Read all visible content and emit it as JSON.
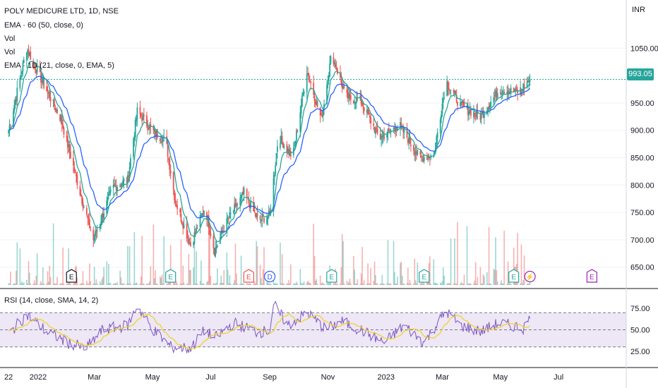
{
  "legend": {
    "title": "POLY MEDICURE LTD, 1D, NSE",
    "ema60": "EMA · 60 (50, close, 0)",
    "vol1": "Vol",
    "vol2": "Vol",
    "ema1d": "EMA · 1D (21, close, 0, EMA, 5)",
    "rsi": "RSI (14, close, SMA, 14, 2)"
  },
  "price_axis": {
    "currency": "INR",
    "last_price": "993.05"
  },
  "colors": {
    "up": "#26a69a",
    "down": "#ef5350",
    "ema_fast": "#26a69a",
    "ema_slow": "#2962ff",
    "rsi_line": "#7e57c2",
    "rsi_ma": "#f2d21b",
    "rsi_band": "#ede7f6",
    "earnings_icon": "#26a69a",
    "earnings_icon_red": "#ef5350",
    "dividend_icon": "#2962ff",
    "split_icon": "#9c27b0"
  },
  "chart_data": [
    {
      "type": "candlestick",
      "title": "POLY MEDICURE LTD, 1D, NSE",
      "ylim": [
        620,
        1080
      ],
      "y_ticks": [
        "1050.00",
        "950.00",
        "900.00",
        "850.00",
        "800.00",
        "750.00",
        "700.00",
        "650.00"
      ],
      "x_ticks": [
        "22",
        "2022",
        "Mar",
        "May",
        "Jul",
        "Sep",
        "Nov",
        "2023",
        "Mar",
        "May",
        "Jul"
      ],
      "last_value": 993.05,
      "key_points": [
        {
          "date": "2021-12-01",
          "close": 900
        },
        {
          "date": "2021-12-20",
          "close": 1050
        },
        {
          "date": "2022-01-05",
          "close": 990
        },
        {
          "date": "2022-01-25",
          "close": 920
        },
        {
          "date": "2022-02-15",
          "close": 780
        },
        {
          "date": "2022-02-28",
          "close": 700
        },
        {
          "date": "2022-03-20",
          "close": 795
        },
        {
          "date": "2022-04-05",
          "close": 810
        },
        {
          "date": "2022-04-15",
          "close": 935
        },
        {
          "date": "2022-04-30",
          "close": 900
        },
        {
          "date": "2022-05-15",
          "close": 880
        },
        {
          "date": "2022-05-25",
          "close": 770
        },
        {
          "date": "2022-06-10",
          "close": 690
        },
        {
          "date": "2022-06-25",
          "close": 760
        },
        {
          "date": "2022-07-05",
          "close": 680
        },
        {
          "date": "2022-07-20",
          "close": 740
        },
        {
          "date": "2022-08-05",
          "close": 785
        },
        {
          "date": "2022-08-20",
          "close": 735
        },
        {
          "date": "2022-09-01",
          "close": 745
        },
        {
          "date": "2022-09-10",
          "close": 890
        },
        {
          "date": "2022-09-25",
          "close": 850
        },
        {
          "date": "2022-10-10",
          "close": 1010
        },
        {
          "date": "2022-10-25",
          "close": 920
        },
        {
          "date": "2022-11-05",
          "close": 1040
        },
        {
          "date": "2022-11-20",
          "close": 960
        },
        {
          "date": "2022-12-05",
          "close": 955
        },
        {
          "date": "2022-12-25",
          "close": 885
        },
        {
          "date": "2023-01-15",
          "close": 910
        },
        {
          "date": "2023-02-05",
          "close": 850
        },
        {
          "date": "2023-02-20",
          "close": 855
        },
        {
          "date": "2023-03-05",
          "close": 990
        },
        {
          "date": "2023-03-20",
          "close": 945
        },
        {
          "date": "2023-04-10",
          "close": 925
        },
        {
          "date": "2023-04-30",
          "close": 975
        },
        {
          "date": "2023-05-20",
          "close": 970
        },
        {
          "date": "2023-06-01",
          "close": 993.05
        }
      ],
      "event_markers": [
        {
          "date": "2022-02-05",
          "label": "E"
        },
        {
          "date": "2022-05-20",
          "label": "E"
        },
        {
          "date": "2022-08-10",
          "label": "E"
        },
        {
          "date": "2022-09-01",
          "label": "D"
        },
        {
          "date": "2022-11-05",
          "label": "E"
        },
        {
          "date": "2023-02-10",
          "label": "E"
        },
        {
          "date": "2023-05-15",
          "label": "E"
        },
        {
          "date": "2023-06-01",
          "label": "⚡"
        },
        {
          "date": "2023-08-05",
          "label": "E"
        }
      ]
    },
    {
      "type": "line",
      "title": "RSI (14, close, SMA, 14, 2)",
      "ylim": [
        15,
        85
      ],
      "y_ticks": [
        "75.00",
        "50.00",
        "25.00"
      ],
      "bands": {
        "upper": 70,
        "middle": 50,
        "lower": 30
      },
      "key_points": [
        {
          "date": "2021-12-01",
          "rsi": 45
        },
        {
          "date": "2021-12-20",
          "rsi": 68
        },
        {
          "date": "2022-01-10",
          "rsi": 48
        },
        {
          "date": "2022-02-01",
          "rsi": 35
        },
        {
          "date": "2022-02-20",
          "rsi": 28
        },
        {
          "date": "2022-03-10",
          "rsi": 50
        },
        {
          "date": "2022-04-05",
          "rsi": 55
        },
        {
          "date": "2022-04-15",
          "rsi": 78
        },
        {
          "date": "2022-04-30",
          "rsi": 52
        },
        {
          "date": "2022-05-20",
          "rsi": 30
        },
        {
          "date": "2022-06-10",
          "rsi": 28
        },
        {
          "date": "2022-06-25",
          "rsi": 50
        },
        {
          "date": "2022-07-05",
          "rsi": 40
        },
        {
          "date": "2022-07-25",
          "rsi": 58
        },
        {
          "date": "2022-08-20",
          "rsi": 47
        },
        {
          "date": "2022-09-01",
          "rsi": 49
        },
        {
          "date": "2022-09-05",
          "rsi": 80
        },
        {
          "date": "2022-09-20",
          "rsi": 55
        },
        {
          "date": "2022-10-10",
          "rsi": 70
        },
        {
          "date": "2022-10-30",
          "rsi": 50
        },
        {
          "date": "2022-11-15",
          "rsi": 60
        },
        {
          "date": "2022-12-05",
          "rsi": 50
        },
        {
          "date": "2022-12-30",
          "rsi": 35
        },
        {
          "date": "2023-01-20",
          "rsi": 55
        },
        {
          "date": "2023-02-10",
          "rsi": 35
        },
        {
          "date": "2023-03-05",
          "rsi": 72
        },
        {
          "date": "2023-03-20",
          "rsi": 55
        },
        {
          "date": "2023-04-10",
          "rsi": 48
        },
        {
          "date": "2023-04-30",
          "rsi": 58
        },
        {
          "date": "2023-05-25",
          "rsi": 52
        },
        {
          "date": "2023-06-01",
          "rsi": 63
        }
      ]
    }
  ]
}
